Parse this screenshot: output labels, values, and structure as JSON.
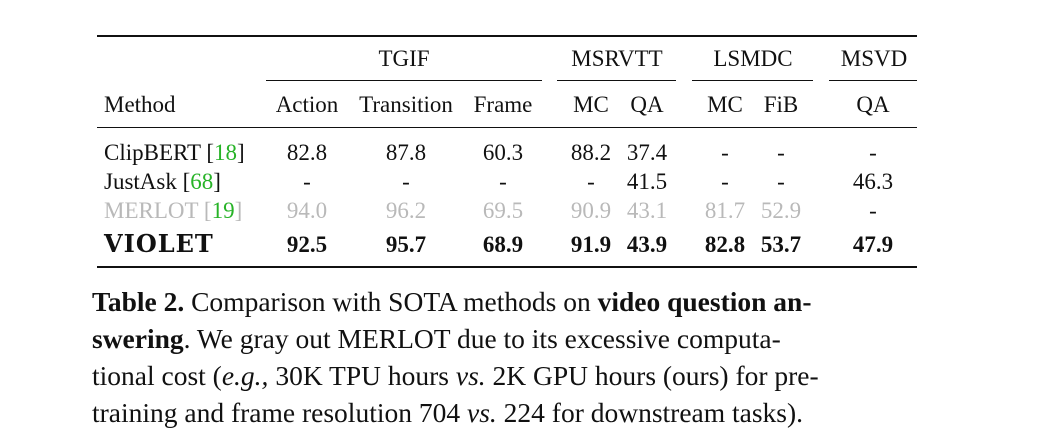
{
  "table": {
    "groups": [
      "TGIF",
      "MSRVTT",
      "LSMDC",
      "MSVD"
    ],
    "columns": [
      "Method",
      "Action",
      "Transition",
      "Frame",
      "MC",
      "QA",
      "MC",
      "FiB",
      "QA"
    ],
    "rows": [
      {
        "method": "ClipBERT",
        "cite": "18",
        "cells": [
          "82.8",
          "87.8",
          "60.3",
          "88.2",
          "37.4",
          "-",
          "-",
          "-"
        ],
        "style": "normal"
      },
      {
        "method": "JustAsk",
        "cite": "68",
        "cells": [
          "-",
          "-",
          "-",
          "-",
          "41.5",
          "-",
          "-",
          "46.3"
        ],
        "style": "normal"
      },
      {
        "method": "MERLOT",
        "cite": "19",
        "cells": [
          "94.0",
          "96.2",
          "69.5",
          "90.9",
          "43.1",
          "81.7",
          "52.9",
          "-"
        ],
        "style": "gray"
      },
      {
        "method": "VIOLET",
        "cite": "",
        "cells": [
          "92.5",
          "95.7",
          "68.9",
          "91.9",
          "43.9",
          "82.8",
          "53.7",
          "47.9"
        ],
        "style": "bold"
      }
    ]
  },
  "caption": {
    "label": "Table 2.",
    "l1_a": "Comparison with SOTA methods on",
    "l1_b": "video question an-",
    "l2_a": "swering",
    "l2_b": ". We gray out MERLOT due to its excessive computa-",
    "l3_a": "tional cost (",
    "l3_b": "e.g.,",
    "l3_c": "30K TPU hours",
    "l3_d": "vs.",
    "l3_e": "2K GPU hours (ours) for pre-",
    "l4_a": "training and frame resolution 704",
    "l4_b": "vs.",
    "l4_c": "224 for downstream tasks)."
  }
}
